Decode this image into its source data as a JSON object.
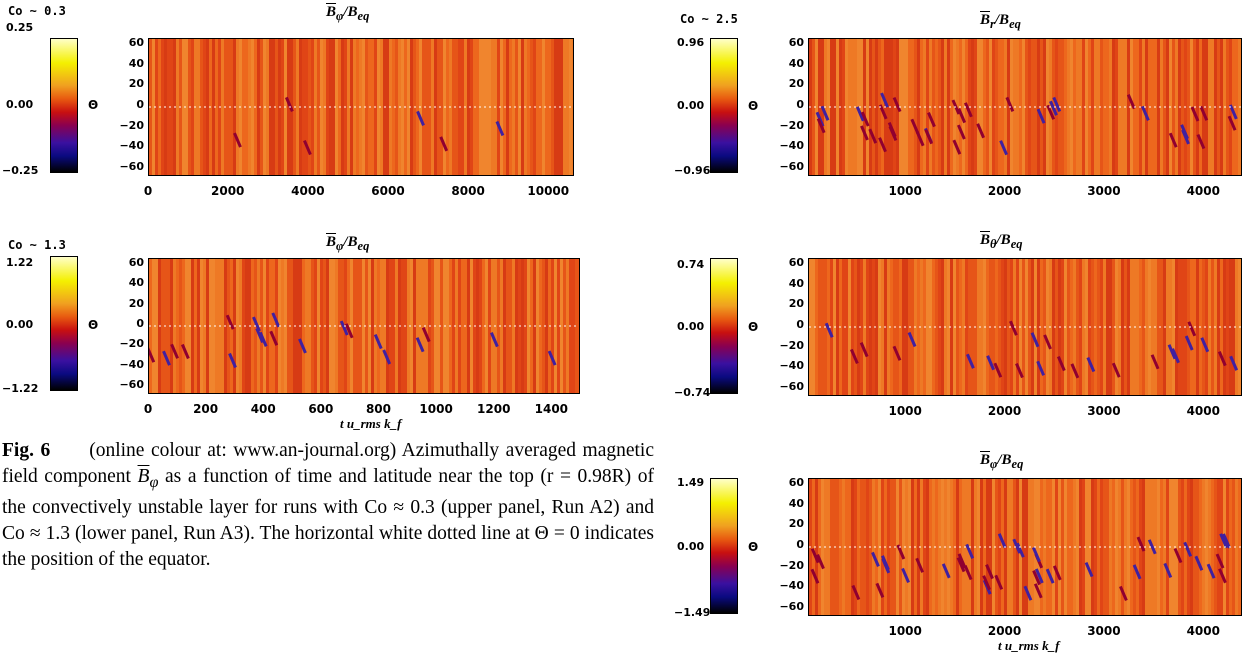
{
  "panels": [
    {
      "id": "left-top",
      "co_label": "Co ~ 0.3",
      "title_bar": "B",
      "title_sub": "φ",
      "title_rest": "/B",
      "title_sub2": "eq",
      "cbar_top": "0.25",
      "cbar_mid": "0.00",
      "cbar_bot": "−0.25",
      "theta": "Θ",
      "yticks": [
        "60",
        "40",
        "20",
        "0",
        "−20",
        "−40",
        "−60"
      ],
      "xticks": [
        "0",
        "2000",
        "4000",
        "6000",
        "8000",
        "10000"
      ],
      "xlabel": ""
    },
    {
      "id": "left-bottom",
      "co_label": "Co ~ 1.3",
      "title_bar": "B",
      "title_sub": "φ",
      "title_rest": "/B",
      "title_sub2": "eq",
      "cbar_top": "1.22",
      "cbar_mid": "0.00",
      "cbar_bot": "−1.22",
      "theta": "Θ",
      "yticks": [
        "60",
        "40",
        "20",
        "0",
        "−20",
        "−40",
        "−60"
      ],
      "xticks": [
        "0",
        "200",
        "400",
        "600",
        "800",
        "1000",
        "1200",
        "1400"
      ],
      "xlabel": "t u_rms k_f"
    },
    {
      "id": "right-top",
      "co_label": "Co ~ 2.5",
      "title_bar": "B",
      "title_sub": "r",
      "title_rest": "/B",
      "title_sub2": "eq",
      "cbar_top": "0.96",
      "cbar_mid": "0.00",
      "cbar_bot": "−0.96",
      "theta": "Θ",
      "yticks": [
        "60",
        "40",
        "20",
        "0",
        "−20",
        "−40",
        "−60"
      ],
      "xticks": [
        "1000",
        "2000",
        "3000",
        "4000"
      ],
      "xlabel": ""
    },
    {
      "id": "right-middle",
      "co_label": "",
      "title_bar": "B",
      "title_sub": "θ",
      "title_rest": "/B",
      "title_sub2": "eq",
      "cbar_top": "0.74",
      "cbar_mid": "0.00",
      "cbar_bot": "−0.74",
      "theta": "Θ",
      "yticks": [
        "60",
        "40",
        "20",
        "0",
        "−20",
        "−40",
        "−60"
      ],
      "xticks": [
        "1000",
        "2000",
        "3000",
        "4000"
      ],
      "xlabel": ""
    },
    {
      "id": "right-bottom",
      "co_label": "",
      "title_bar": "B",
      "title_sub": "φ",
      "title_rest": "/B",
      "title_sub2": "eq",
      "cbar_top": "1.49",
      "cbar_mid": "0.00",
      "cbar_bot": "−1.49",
      "theta": "Θ",
      "yticks": [
        "60",
        "40",
        "20",
        "0",
        "−20",
        "−40",
        "−60"
      ],
      "xticks": [
        "1000",
        "2000",
        "3000",
        "4000"
      ],
      "xlabel": "t u_rms k_f"
    }
  ],
  "caption": {
    "fig_label": "Fig. 6",
    "text1": "(online colour at: www.an-journal.org) Azimuthally averaged magnetic field component ",
    "sym": "B",
    "sub": "φ",
    "text2": " as a function of time and latitude near the top (r = 0.98R) of the convectively unstable layer for runs with Co ≈ 0.3 (upper panel, Run A2) and Co ≈ 1.3 (lower panel, Run A3). The horizontal white dotted line at Θ = 0 indicates the position of the equator."
  }
}
